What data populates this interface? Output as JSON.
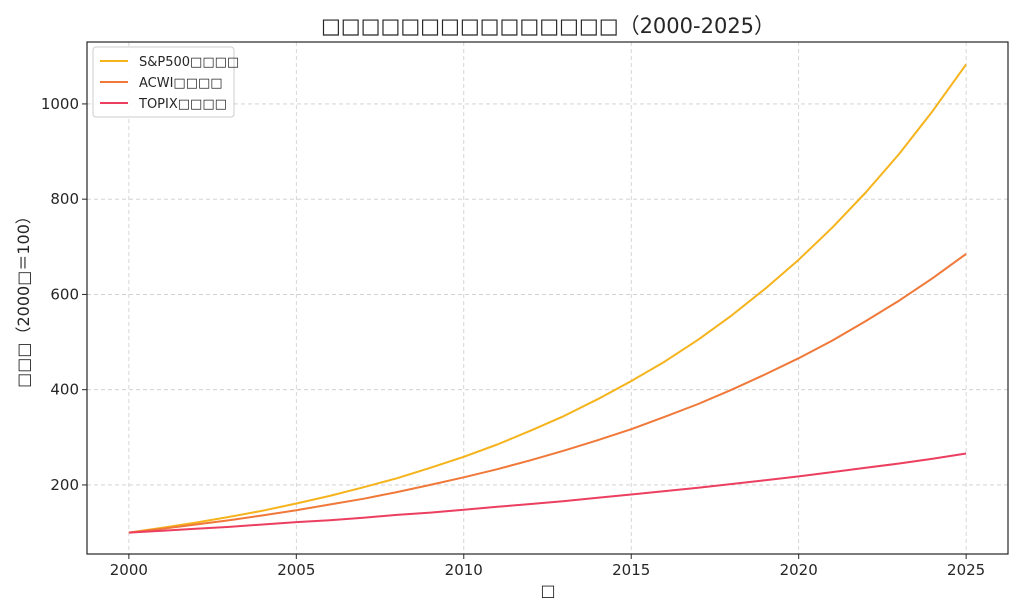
{
  "chart_data": {
    "type": "line",
    "title": "□□□□□□□□□□□□□□□（2000-2025）",
    "xlabel": "□",
    "ylabel": "□□□（2000□＝100）",
    "x": [
      2000,
      2001,
      2002,
      2003,
      2004,
      2005,
      2006,
      2007,
      2008,
      2009,
      2010,
      2011,
      2012,
      2013,
      2014,
      2015,
      2016,
      2017,
      2018,
      2019,
      2020,
      2021,
      2022,
      2023,
      2024,
      2025
    ],
    "xlim": [
      1998.75,
      2026.25
    ],
    "ylim": [
      55,
      1130
    ],
    "xticks": [
      2000,
      2005,
      2010,
      2015,
      2020,
      2025
    ],
    "yticks": [
      200,
      400,
      600,
      800,
      1000
    ],
    "grid": true,
    "legend_position": "top-left",
    "series": [
      {
        "name": "S&P500□□□□",
        "color": "#f5b31c",
        "values": [
          100,
          110,
          121,
          133,
          146,
          161,
          177,
          195,
          214,
          236,
          259,
          285,
          314,
          345,
          380,
          418,
          459,
          505,
          556,
          612,
          673,
          740,
          814,
          895,
          985,
          1083
        ]
      },
      {
        "name": "ACWI□□□□",
        "color": "#f07838",
        "values": [
          100,
          108,
          117,
          126,
          136,
          147,
          159,
          171,
          185,
          200,
          216,
          233,
          252,
          272,
          294,
          317,
          343,
          370,
          400,
          432,
          466,
          503,
          544,
          587,
          634,
          685
        ]
      },
      {
        "name": "TOPIX□□□□",
        "color": "#ec3f5f",
        "values": [
          100,
          104,
          108,
          112,
          117,
          122,
          126,
          131,
          137,
          142,
          148,
          154,
          160,
          166,
          173,
          180,
          187,
          194,
          202,
          210,
          218,
          227,
          236,
          245,
          255,
          266
        ]
      }
    ]
  }
}
